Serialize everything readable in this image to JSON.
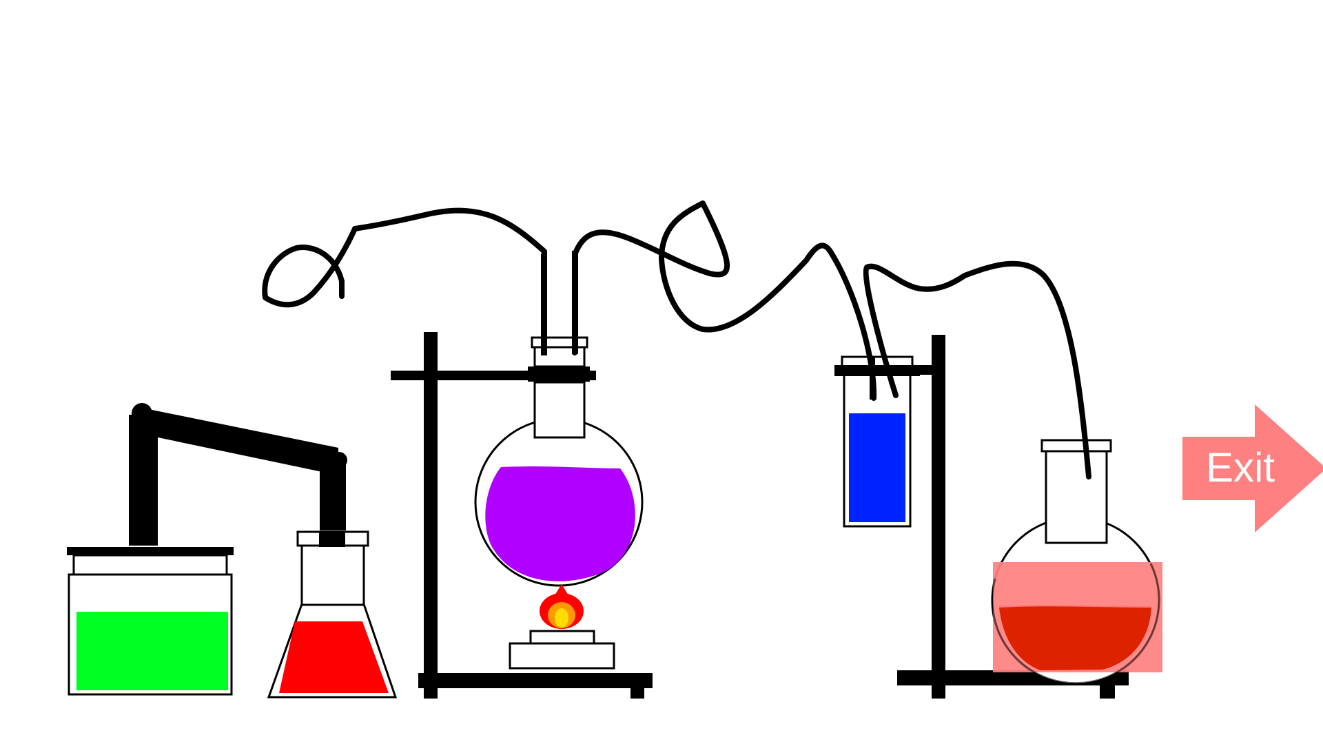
{
  "exit_button": {
    "label": "Exit",
    "color": "#ff8080"
  },
  "apparatus": [
    {
      "id": "green-jar",
      "kind": "reagent-jar",
      "liquid_color": "#00ff22",
      "fill_level": 0.7
    },
    {
      "id": "red-flask",
      "kind": "erlenmeyer-flask",
      "liquid_color": "#ff0000",
      "fill_level": 0.45
    },
    {
      "id": "purple-flask",
      "kind": "round-bottom-flask",
      "liquid_color": "#b000ff",
      "fill_level": 0.75
    },
    {
      "id": "burner",
      "kind": "burner",
      "flame_colors": [
        "#ff0000",
        "#ff9900",
        "#ffdd00"
      ]
    },
    {
      "id": "blue-cylinder",
      "kind": "gas-collection-tube",
      "liquid_color": "#0022ff",
      "fill_level": 0.7
    },
    {
      "id": "orange-flask",
      "kind": "round-bottom-flask",
      "liquid_color": "#dd2200",
      "fill_level": 0.4,
      "highlight_color": "#ff8080"
    }
  ]
}
